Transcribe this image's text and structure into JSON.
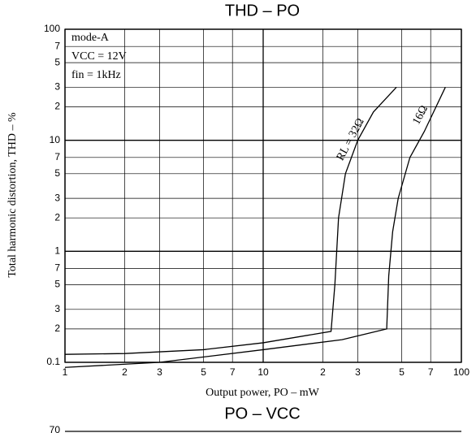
{
  "chart_data": [
    {
      "type": "line",
      "title": "THD – PO",
      "x_label": "Output power, PO – mW",
      "y_label": "Total harmonic distortion, THD – %",
      "log_x": true,
      "log_y": true,
      "grid": true,
      "annotations": [
        "mode-A",
        "VCC = 12V",
        "fin = 1kHz"
      ],
      "xlim": [
        1,
        100
      ],
      "ylim": [
        0.1,
        100
      ],
      "xticks": [
        1,
        2,
        3,
        5,
        7,
        10,
        {
          "value": 20,
          "label": "2"
        },
        {
          "value": 30,
          "label": "3"
        },
        {
          "value": 50,
          "label": "5"
        },
        {
          "value": 70,
          "label": "7"
        },
        100
      ],
      "yticks": [
        {
          "value": 0.1,
          "label": "0.1"
        },
        {
          "value": 0.2,
          "label": "2"
        },
        {
          "value": 0.3,
          "label": "3"
        },
        {
          "value": 0.5,
          "label": "5"
        },
        {
          "value": 0.7,
          "label": "7"
        },
        1,
        2,
        3,
        5,
        7,
        10,
        {
          "value": 20,
          "label": "2"
        },
        {
          "value": 30,
          "label": "3"
        },
        {
          "value": 50,
          "label": "5"
        },
        {
          "value": 70,
          "label": "7"
        },
        100
      ],
      "series": [
        {
          "name": "RL = 32Ω",
          "color": "#000000",
          "x": [
            1,
            2,
            5,
            10,
            22,
            23,
            24,
            26,
            30,
            36,
            47
          ],
          "values": [
            0.118,
            0.12,
            0.13,
            0.15,
            0.19,
            0.5,
            2,
            5,
            10,
            18,
            30
          ]
        },
        {
          "name": "16Ω",
          "color": "#000000",
          "x": [
            1,
            3,
            10,
            25,
            42,
            43,
            45,
            48,
            55,
            65,
            83
          ],
          "values": [
            0.09,
            0.1,
            0.13,
            0.16,
            0.2,
            0.6,
            1.5,
            3,
            7,
            12,
            30
          ]
        }
      ]
    },
    {
      "type": "line",
      "title": "PO – VCC",
      "yticks": [
        70
      ]
    }
  ]
}
